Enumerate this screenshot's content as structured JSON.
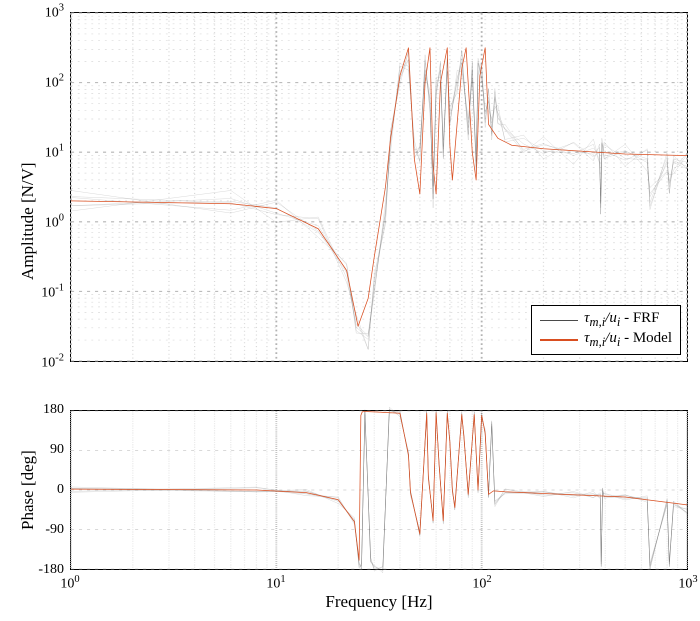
{
  "xlabel": "Frequency [Hz]",
  "x_range_hz": [
    1,
    1000
  ],
  "x_major_ticks_hz": [
    1,
    10,
    100,
    1000
  ],
  "x_major_tick_labels": [
    "10^0",
    "10^1",
    "10^2",
    "10^3"
  ],
  "x_minor_ticks_hz": [
    2,
    3,
    4,
    5,
    6,
    7,
    8,
    9,
    20,
    30,
    40,
    50,
    60,
    70,
    80,
    90,
    200,
    300,
    400,
    500,
    600,
    700,
    800,
    900
  ],
  "panel1": {
    "ylabel": "Amplitude [N/V]",
    "y_range": [
      -40,
      60
    ],
    "y_major_ticks": [
      -40,
      -20,
      0,
      20,
      40,
      60
    ],
    "y_major_tick_labels": [
      "10^{-2}",
      "10^{-1}",
      "10^0",
      "10^1",
      "10^2",
      "10^3"
    ],
    "y_minor_subticks_db": [
      6.02,
      9.54,
      12.04,
      13.98,
      15.56,
      16.9,
      18.06,
      19.08
    ],
    "legend": {
      "items": [
        {
          "label_html": "<span class='sub'>τ<sub>m,i</sub>/u<sub>i</sub></span> - FRF",
          "color": "#4a4a4a",
          "lw": 1.5
        },
        {
          "label_html": "<span class='sub'>τ<sub>m,i</sub>/u<sub>i</sub></span> - Model",
          "color": "#d94e20",
          "lw": 2.5
        }
      ],
      "pos": "lower-right"
    }
  },
  "panel2": {
    "ylabel": "Phase [deg]",
    "y_range": [
      -180,
      180
    ],
    "y_major_ticks": [
      -180,
      -90,
      0,
      90,
      180
    ],
    "y_major_tick_labels": [
      "-180",
      "-90",
      "0",
      "90",
      "180"
    ]
  },
  "series": [
    {
      "name": "frf",
      "color": "#4a4a4a",
      "lw": 1.0,
      "opacity": 0.6,
      "stroke_cap": "butt"
    },
    {
      "name": "model",
      "color": "#d94e20",
      "lw": 2.5,
      "opacity": 1.0,
      "stroke_cap": "round"
    }
  ],
  "frf_variants": 6,
  "frf_mag": {
    "f": [
      1,
      6,
      10,
      16,
      22,
      24.5,
      28,
      30,
      34,
      36,
      40,
      44,
      47,
      50,
      53,
      56,
      58,
      60,
      63,
      65,
      68,
      70,
      76,
      80,
      86,
      90,
      94,
      96,
      100,
      104,
      108,
      112,
      116,
      120,
      130,
      160,
      200,
      280,
      350,
      375,
      380,
      385,
      395,
      500,
      640,
      660,
      800,
      820,
      860,
      1000
    ],
    "db": [
      6,
      5.2,
      3.8,
      -2,
      -14,
      -30,
      -34,
      -18,
      2,
      24,
      42,
      47,
      20,
      20,
      45,
      34,
      8,
      38,
      44,
      20,
      46,
      30,
      40,
      47,
      26,
      44,
      16,
      45,
      43,
      30,
      36,
      26,
      36,
      30,
      26,
      22,
      21,
      20.5,
      20,
      20,
      4,
      22,
      20,
      19,
      18.5,
      6,
      17.5,
      10,
      17,
      17
    ]
  },
  "model_mag": {
    "f": [
      1,
      6,
      10,
      16,
      22,
      25,
      28,
      30,
      34,
      36,
      40,
      44,
      47,
      50,
      53,
      56,
      58,
      60,
      63,
      68,
      70,
      72,
      80,
      84,
      90,
      94,
      98,
      104,
      108,
      120,
      140,
      200,
      500,
      1000
    ],
    "db": [
      6,
      5.2,
      3.8,
      -2,
      -14,
      -30,
      -22,
      -10,
      10,
      24,
      42,
      50,
      18,
      8,
      40,
      50,
      16,
      8,
      40,
      50,
      22,
      12,
      44,
      50,
      20,
      12,
      42,
      50,
      28,
      24,
      22,
      21,
      19.5,
      19
    ]
  },
  "frf_phase": {
    "f": [
      1,
      8,
      14,
      20,
      24,
      25.3,
      26,
      27,
      28.8,
      30,
      33,
      35.5,
      40,
      44,
      45,
      50,
      54,
      55,
      58,
      60,
      62,
      65,
      68,
      70,
      72,
      74,
      80,
      82,
      86,
      92,
      96,
      100,
      104,
      108,
      112,
      116,
      130,
      200,
      280,
      350,
      378,
      382,
      388,
      395,
      500,
      640,
      660,
      800,
      820,
      860,
      1000
    ],
    "deg": [
      2,
      0,
      -6,
      -22,
      -72,
      -170,
      -175,
      178,
      -160,
      -178,
      -180,
      180,
      175,
      80,
      -5,
      -100,
      175,
      30,
      -70,
      176,
      60,
      -70,
      175,
      110,
      0,
      -40,
      172,
      120,
      -10,
      172,
      0,
      170,
      130,
      -10,
      150,
      -30,
      -4,
      -8,
      -10,
      -12,
      -12,
      -170,
      0,
      -14,
      -16,
      -20,
      -175,
      -26,
      -170,
      -30,
      -50
    ]
  },
  "model_phase": {
    "f": [
      1,
      8,
      14,
      20,
      24,
      25.3,
      25.8,
      26.2,
      27,
      40,
      44,
      45,
      50,
      54,
      55,
      58,
      60,
      62,
      65,
      68,
      70,
      72,
      74,
      80,
      82,
      86,
      92,
      96,
      100,
      104,
      108,
      114,
      130,
      200,
      500,
      1000
    ],
    "deg": [
      2,
      0,
      -6,
      -22,
      -72,
      -160,
      170,
      178,
      179,
      175,
      80,
      -5,
      -100,
      175,
      30,
      -70,
      176,
      60,
      -70,
      175,
      110,
      0,
      -40,
      172,
      120,
      -10,
      172,
      0,
      170,
      130,
      -10,
      -2,
      -4,
      -8,
      -16,
      -34
    ]
  },
  "colors": {
    "frf": "#4a4a4a",
    "model": "#d94e20",
    "grid_major": "#b3b3b3",
    "grid_minor": "#d9d9d9",
    "axis": "#000000",
    "bg": "#ffffff"
  },
  "line_widths": {
    "frf": 1.0,
    "model": 2.5,
    "axis": 1.5
  },
  "font_sizes": {
    "label": 17,
    "tick": 14,
    "legend": 15
  },
  "font_family": "serif"
}
